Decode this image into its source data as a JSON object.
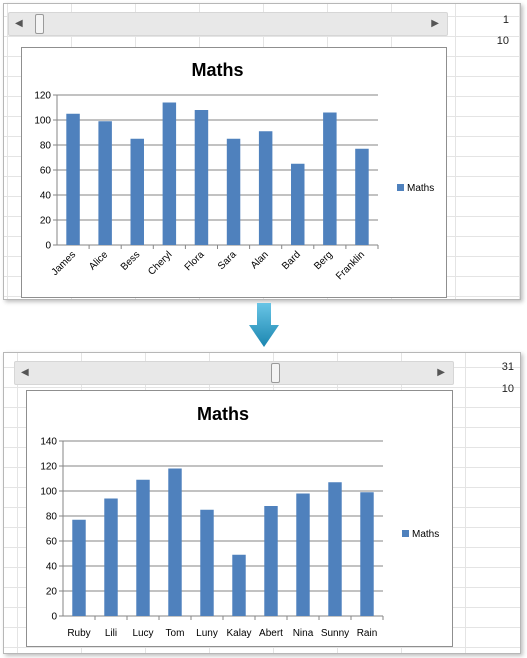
{
  "colors": {
    "bar": "#4f81bd",
    "grid": "#868686",
    "axis": "#868686",
    "arrow_top": "#69c5e6",
    "arrow_bottom": "#1b86b0"
  },
  "icons": {
    "scroll_left": "triangle-left-icon",
    "scroll_right": "triangle-right-icon",
    "transition": "down-arrow-icon"
  },
  "panels": [
    {
      "cells": [
        "1",
        "10"
      ],
      "scroll_position": 0.0
    },
    {
      "cells": [
        "31",
        "10"
      ],
      "scroll_position": 0.6
    }
  ],
  "chart_data": [
    {
      "type": "bar",
      "title": "Maths",
      "categories": [
        "James",
        "Alice",
        "Bess",
        "Cheryl",
        "Flora",
        "Sara",
        "Alan",
        "Bard",
        "Berg",
        "Franklin"
      ],
      "series": [
        {
          "name": "Maths",
          "values": [
            105,
            99,
            85,
            114,
            108,
            85,
            91,
            65,
            106,
            77
          ]
        }
      ],
      "ylim": [
        0,
        120
      ],
      "yticks": [
        0,
        20,
        40,
        60,
        80,
        100,
        120
      ],
      "grid": true,
      "legend": "right"
    },
    {
      "type": "bar",
      "title": "Maths",
      "categories": [
        "Ruby",
        "Lili",
        "Lucy",
        "Tom",
        "Luny",
        "Kalay",
        "Abert",
        "Nina",
        "Sunny",
        "Rain"
      ],
      "series": [
        {
          "name": "Maths",
          "values": [
            77,
            94,
            109,
            118,
            85,
            49,
            88,
            98,
            107,
            99
          ]
        }
      ],
      "ylim": [
        0,
        140
      ],
      "yticks": [
        0,
        20,
        40,
        60,
        80,
        100,
        120,
        140
      ],
      "grid": true,
      "legend": "right"
    }
  ]
}
